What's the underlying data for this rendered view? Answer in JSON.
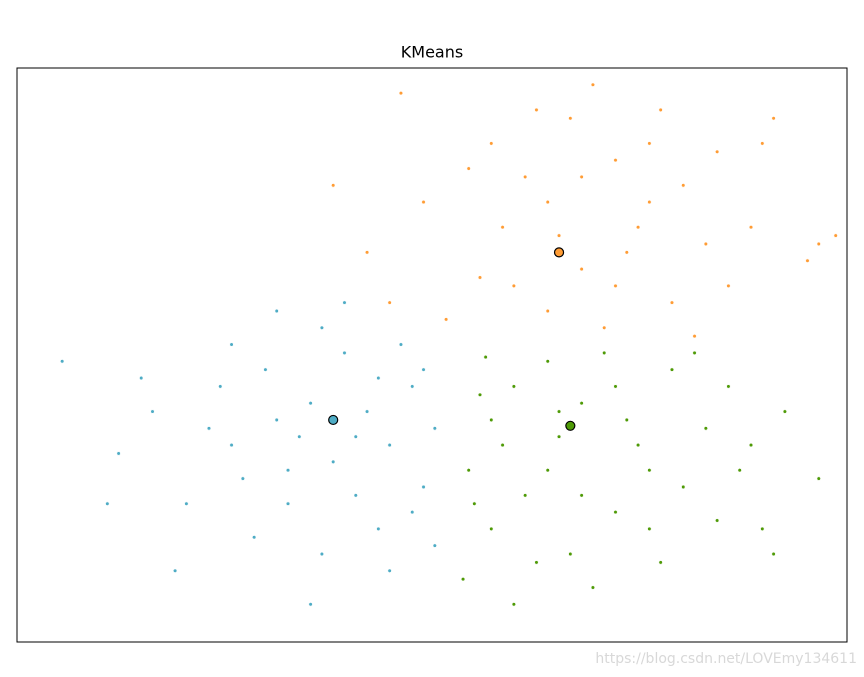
{
  "chart_data": {
    "type": "scatter",
    "title": "KMeans",
    "xlim": [
      -3.8,
      3.55
    ],
    "ylim": [
      -3.65,
      3.2
    ],
    "series": [
      {
        "color": "#4EACC5",
        "x": [
          -1.2,
          -0.5,
          -1.6,
          -0.8,
          -2.1,
          -0.3,
          -1.4,
          -0.9,
          -1.8,
          -0.6,
          -2.6,
          -1.1,
          -0.2,
          -1.5,
          -2.3,
          -0.7,
          -1.3,
          -0.4,
          -1.9,
          -3.4,
          -2.9,
          -0.1,
          -1.0,
          -1.7,
          -0.5,
          -2.0,
          -0.9,
          -1.2,
          -3.0,
          -0.3,
          -1.5,
          -2.4,
          -0.8,
          -1.9,
          -0.6,
          -1.1,
          -2.7,
          -0.2,
          -1.4,
          -0.1
        ],
        "values": [
          -0.8,
          -1.3,
          -0.4,
          -1.9,
          -1.1,
          -0.6,
          -1.6,
          -0.2,
          -1.7,
          -2.3,
          -0.9,
          -2.6,
          -1.8,
          0.3,
          -2.0,
          -0.9,
          -1.2,
          -0.1,
          -0.1,
          -0.3,
          -1.4,
          -1.1,
          -1.5,
          -2.4,
          -2.8,
          -0.6,
          0.4,
          -3.2,
          -2.0,
          -2.1,
          -1.0,
          -2.8,
          -1.2,
          -1.3,
          -0.5,
          0.1,
          -0.5,
          -0.4,
          -2.0,
          -2.5
        ]
      },
      {
        "color": "#FF9C34",
        "x": [
          1.2,
          0.5,
          1.8,
          0.9,
          2.3,
          0.3,
          1.5,
          0.7,
          2.0,
          1.1,
          2.7,
          0.4,
          1.6,
          -0.2,
          2.4,
          1.0,
          3.2,
          0.6,
          1.3,
          1.9,
          -0.4,
          2.8,
          0.8,
          1.4,
          2.2,
          -0.5,
          1.7,
          3.3,
          0.9,
          2.5,
          1.2,
          -1.0,
          2.1,
          1.5,
          -0.7,
          2.9,
          0.0,
          1.8,
          0.2,
          3.45
        ],
        "values": [
          0.8,
          1.3,
          1.6,
          0.3,
          1.1,
          0.7,
          2.1,
          1.9,
          0.4,
          2.6,
          1.3,
          2.3,
          1.0,
          1.6,
          2.2,
          1.2,
          0.9,
          0.6,
          3.0,
          2.7,
          2.9,
          2.3,
          2.7,
          0.1,
          0.0,
          0.4,
          1.3,
          1.1,
          1.6,
          0.6,
          1.9,
          1.8,
          1.8,
          0.6,
          1.0,
          2.6,
          0.2,
          2.3,
          2.0,
          1.2
        ]
      },
      {
        "color": "#4E9A06",
        "x": [
          1.2,
          0.5,
          1.8,
          0.9,
          2.3,
          0.3,
          1.5,
          0.7,
          2.0,
          1.1,
          2.7,
          0.4,
          1.6,
          0.2,
          2.4,
          1.0,
          3.0,
          0.6,
          1.3,
          1.9,
          0.15,
          2.8,
          0.8,
          1.4,
          2.2,
          0.35,
          1.7,
          3.3,
          0.9,
          2.5,
          1.2,
          0.6,
          2.1,
          1.5,
          0.4,
          2.9,
          1.0,
          1.8,
          0.25,
          2.6
        ],
        "values": [
          -0.8,
          -1.3,
          -1.6,
          -0.3,
          -1.1,
          -0.7,
          -2.1,
          -1.9,
          -0.4,
          -2.6,
          -1.3,
          -2.3,
          -1.0,
          -1.6,
          -2.2,
          -1.2,
          -0.9,
          -0.6,
          -3.0,
          -2.7,
          -2.9,
          -2.3,
          -2.7,
          -0.2,
          -0.2,
          -0.25,
          -1.3,
          -1.7,
          -1.6,
          -0.6,
          -1.9,
          -3.2,
          -1.8,
          -0.6,
          -1.0,
          -2.6,
          -0.9,
          -2.3,
          -2.0,
          -1.6
        ]
      }
    ],
    "cluster_centers": {
      "x": [
        -1.0,
        1.0,
        1.1
      ],
      "values": [
        -1.0,
        1.0,
        -1.07
      ],
      "colors": [
        "#4EACC5",
        "#FF9C34",
        "#4E9A06"
      ],
      "edgecolor": "#000000"
    }
  },
  "watermark": "https://blog.csdn.net/LOVEmy134611"
}
